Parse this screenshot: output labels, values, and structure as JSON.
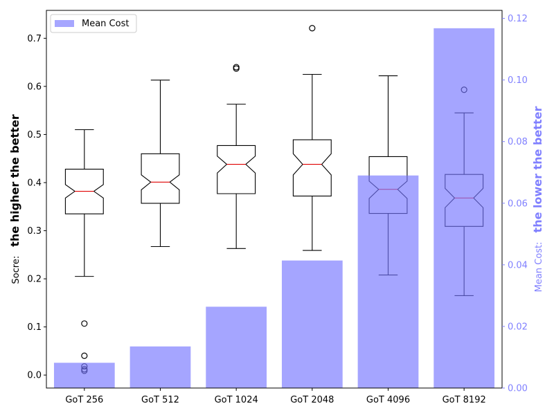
{
  "chart_data": {
    "type": "box+bar",
    "categories": [
      "GoT 256",
      "GoT 512",
      "GoT 1024",
      "GoT 2048",
      "GoT 4096",
      "GoT 8192"
    ],
    "left_axis": {
      "label_prefix": "Socre:",
      "label_emphasis": "the higher the better",
      "ylim": [
        -0.027,
        0.758
      ],
      "ticks": [
        0.0,
        0.1,
        0.2,
        0.3,
        0.4,
        0.5,
        0.6,
        0.7
      ],
      "tick_labels": [
        "0.0",
        "0.1",
        "0.2",
        "0.3",
        "0.4",
        "0.5",
        "0.6",
        "0.7"
      ],
      "color": "#000000"
    },
    "right_axis": {
      "label_prefix": "Mean Cost:",
      "label_emphasis": "the lower the better",
      "ylim": [
        0,
        0.1226
      ],
      "ticks": [
        0.0,
        0.02,
        0.04,
        0.06,
        0.08,
        0.1,
        0.12
      ],
      "tick_labels": [
        "0.00",
        "0.02",
        "0.04",
        "0.06",
        "0.08",
        "0.10",
        "0.12"
      ],
      "color": "#8080ff"
    },
    "boxes": [
      {
        "category": "GoT 256",
        "whisker_low": 0.205,
        "q1": 0.335,
        "median": 0.382,
        "q3": 0.428,
        "whisker_high": 0.51,
        "notch_low": 0.368,
        "notch_high": 0.396,
        "outliers": [
          0.107,
          0.04,
          0.018,
          0.012,
          0.009
        ]
      },
      {
        "category": "GoT 512",
        "whisker_low": 0.267,
        "q1": 0.357,
        "median": 0.401,
        "q3": 0.46,
        "whisker_high": 0.613,
        "notch_low": 0.385,
        "notch_high": 0.416,
        "outliers": []
      },
      {
        "category": "GoT 1024",
        "whisker_low": 0.263,
        "q1": 0.377,
        "median": 0.438,
        "q3": 0.477,
        "whisker_high": 0.563,
        "notch_low": 0.42,
        "notch_high": 0.455,
        "outliers": [
          0.64,
          0.637
        ]
      },
      {
        "category": "GoT 2048",
        "whisker_low": 0.259,
        "q1": 0.372,
        "median": 0.438,
        "q3": 0.489,
        "whisker_high": 0.625,
        "notch_low": 0.416,
        "notch_high": 0.46,
        "outliers": [
          0.721
        ]
      },
      {
        "category": "GoT 4096",
        "whisker_low": 0.208,
        "q1": 0.336,
        "median": 0.386,
        "q3": 0.454,
        "whisker_high": 0.622,
        "notch_low": 0.367,
        "notch_high": 0.403,
        "outliers": []
      },
      {
        "category": "GoT 8192",
        "whisker_low": 0.165,
        "q1": 0.309,
        "median": 0.368,
        "q3": 0.417,
        "whisker_high": 0.545,
        "notch_low": 0.348,
        "notch_high": 0.388,
        "outliers": [
          0.593
        ]
      }
    ],
    "bars": {
      "name": "Mean Cost",
      "values": [
        0.0082,
        0.0135,
        0.0264,
        0.0414,
        0.069,
        0.1168
      ],
      "color": "#a6a6ff"
    },
    "legend": {
      "position": "upper-left",
      "entries": [
        "Mean Cost"
      ]
    },
    "grid": false
  }
}
